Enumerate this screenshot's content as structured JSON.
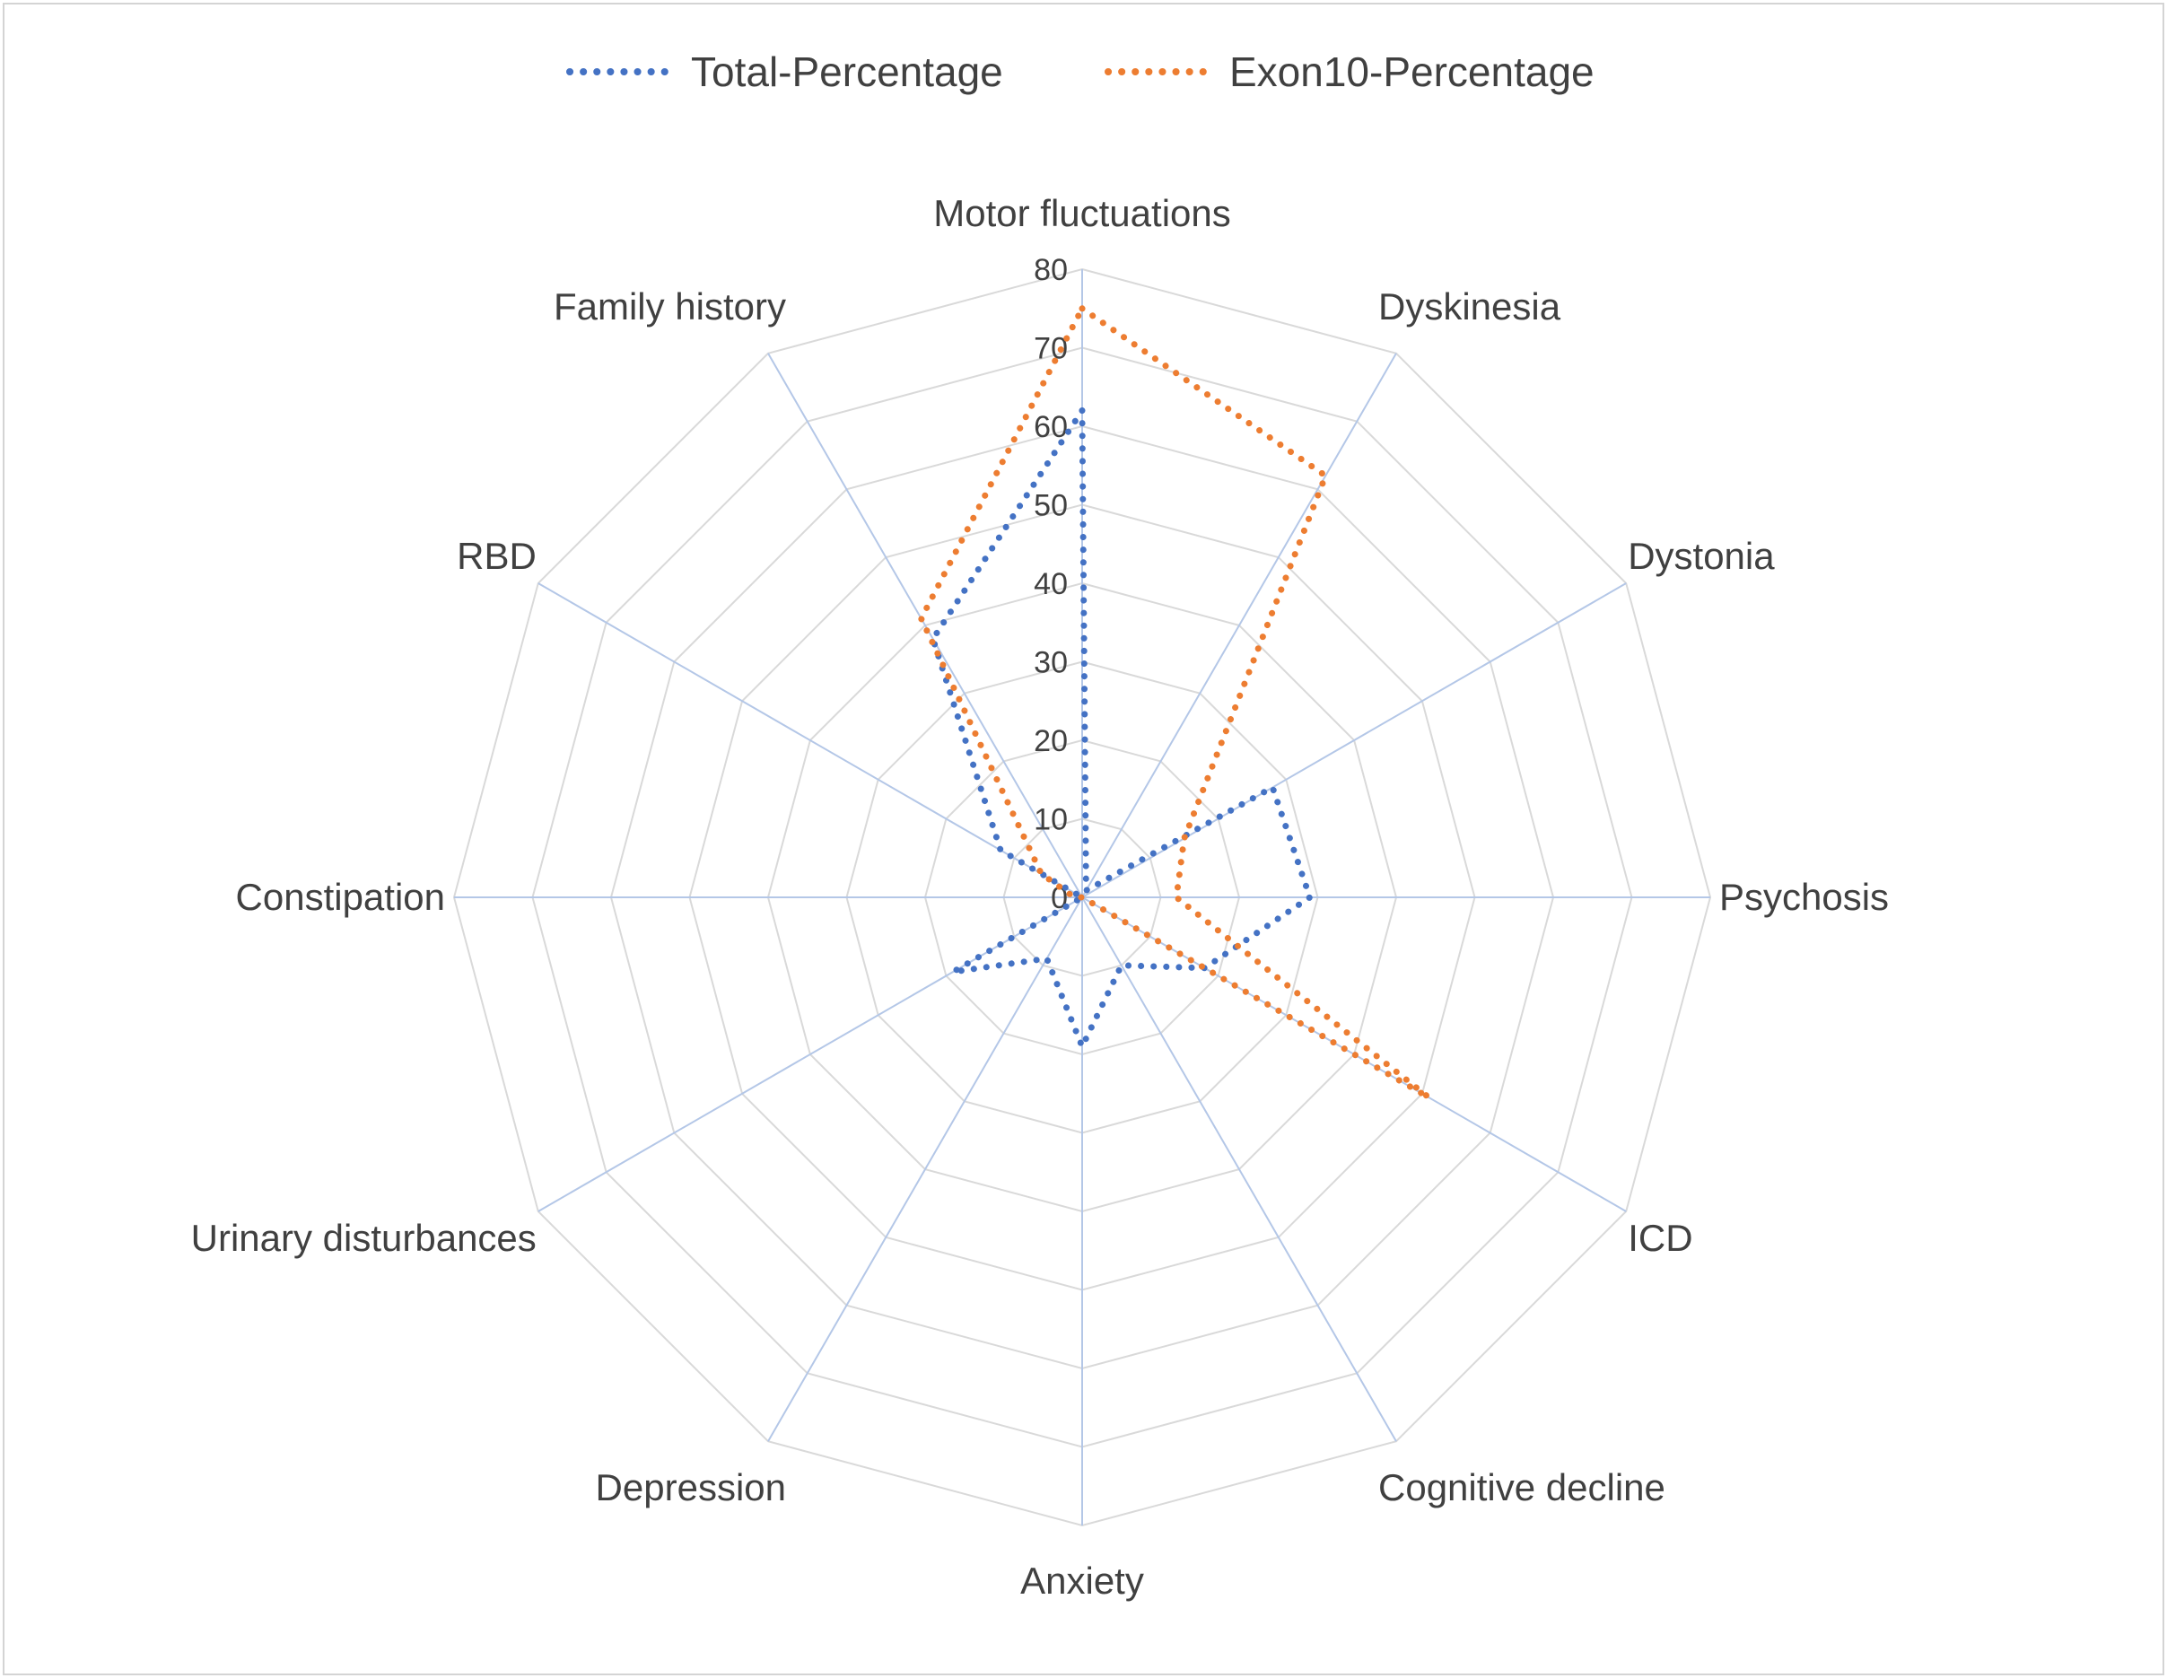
{
  "chart_data": {
    "type": "radar",
    "categories": [
      "Motor fluctuations",
      "Dyskinesia",
      "Dystonia",
      "Psychosis",
      "ICD",
      "Cognitive decline",
      "Anxiety",
      "Depression",
      "Urinary disturbances",
      "Constipation",
      "RBD",
      "Family history"
    ],
    "series": [
      {
        "name": "Total-Percentage",
        "color": "#4472C4",
        "values": [
          62,
          1,
          28,
          29,
          18,
          10,
          19,
          9,
          19,
          0,
          12,
          38
        ]
      },
      {
        "name": "Exon10-Percentage",
        "color": "#ED7D31",
        "values": [
          75,
          62,
          15,
          12,
          51,
          0,
          0,
          0,
          0,
          1,
          6,
          41
        ]
      }
    ],
    "radial_axis": {
      "min": 0,
      "max": 80,
      "ticks": [
        0,
        10,
        20,
        30,
        40,
        50,
        60,
        70,
        80
      ]
    },
    "gridlines": true,
    "legend_position": "top",
    "colors": {
      "gridline": "#d9d9d9",
      "spoke": "#b4c7e7"
    }
  }
}
